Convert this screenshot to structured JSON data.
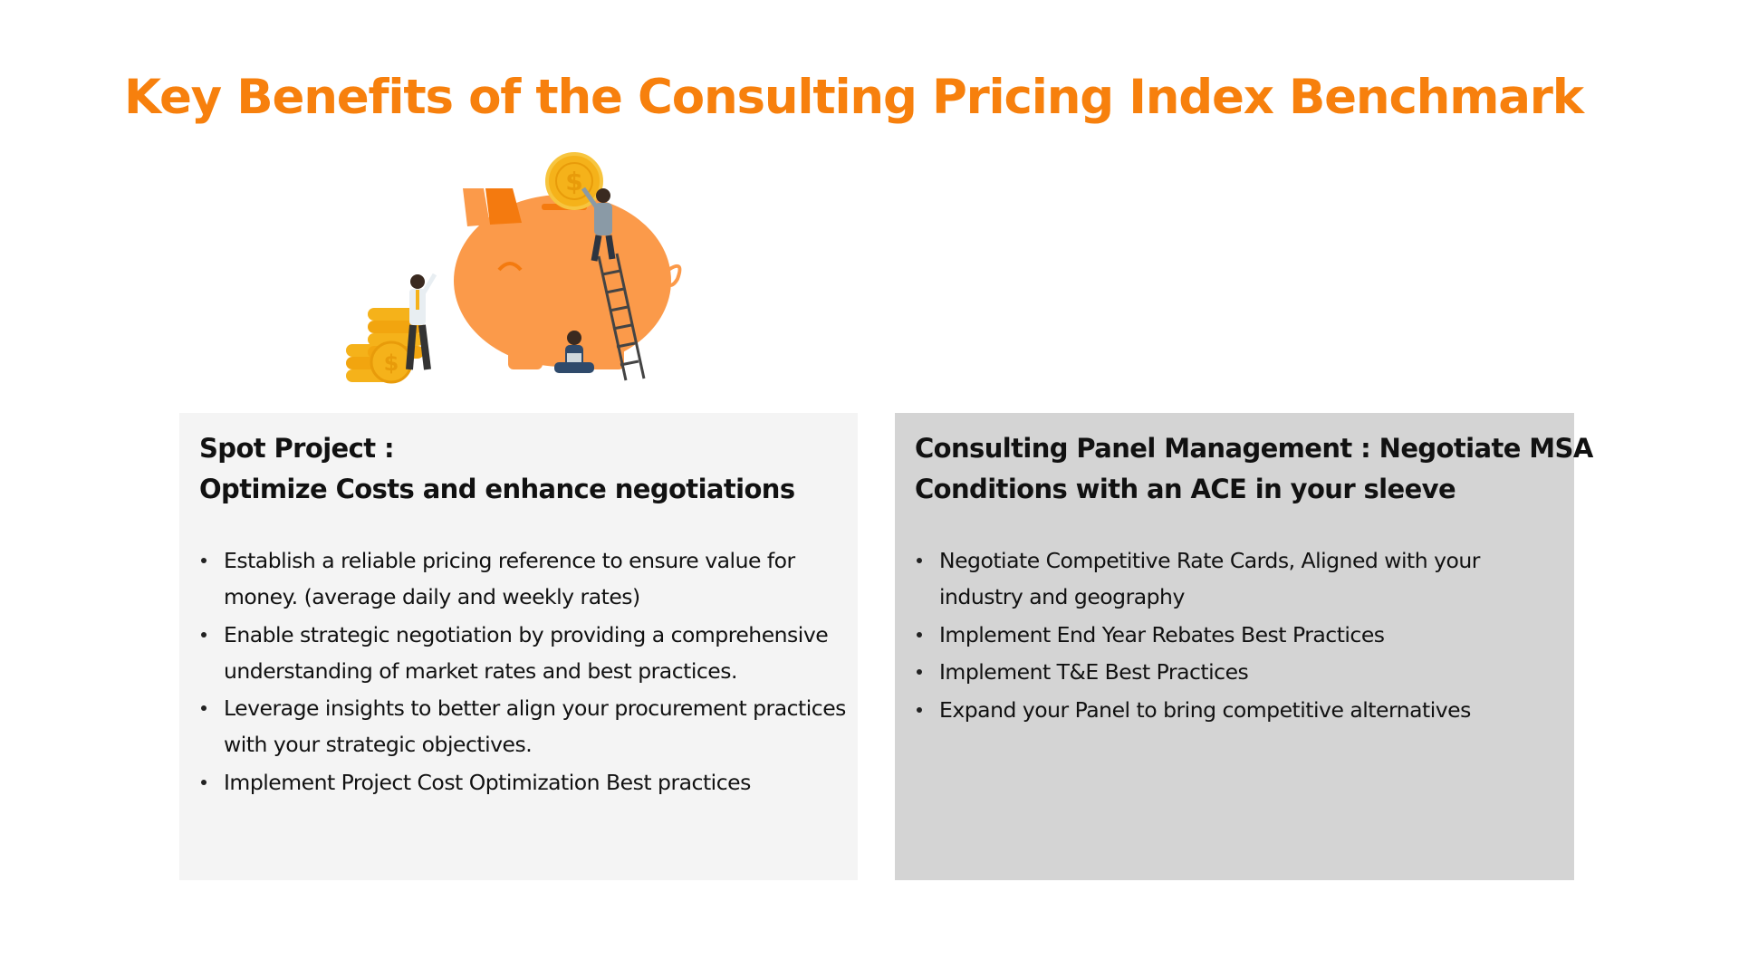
{
  "title": "Key Benefits of the Consulting Pricing Index Benchmark",
  "colors": {
    "accent": "#f7800d",
    "piggy": "#fb9a4a",
    "coin": "#f5b21a",
    "left_card_bg": "#f4f4f4",
    "right_card_bg": "#d4d4d4"
  },
  "illustration": {
    "icon": "piggy-bank-with-coins-and-people-icon"
  },
  "left_card": {
    "heading_lines": [
      "Spot Project :",
      "Optimize Costs and enhance negotiations"
    ],
    "bullets": [
      {
        "lines": [
          "Establish a reliable pricing reference to ensure value for",
          "money. (average daily and weekly rates)"
        ]
      },
      {
        "lines": [
          "Enable strategic negotiation by providing a comprehensive",
          "understanding of market rates and best practices."
        ]
      },
      {
        "lines": [
          "Leverage insights to better align your procurement practices",
          "with your  strategic objectives."
        ]
      },
      {
        "lines": [
          "Implement Project Cost Optimization Best practices"
        ]
      }
    ]
  },
  "right_card": {
    "heading_lines": [
      "Consulting Panel Management : Negotiate MSA",
      "Conditions with an ACE in your sleeve"
    ],
    "bullets": [
      {
        "lines": [
          "Negotiate Competitive Rate Cards, Aligned with your",
          "industry and geography"
        ]
      },
      {
        "lines": [
          "Implement End Year Rebates Best Practices"
        ]
      },
      {
        "lines": [
          "Implement T&E Best Practices"
        ]
      },
      {
        "lines": [
          "Expand your Panel to bring competitive alternatives"
        ]
      }
    ]
  }
}
